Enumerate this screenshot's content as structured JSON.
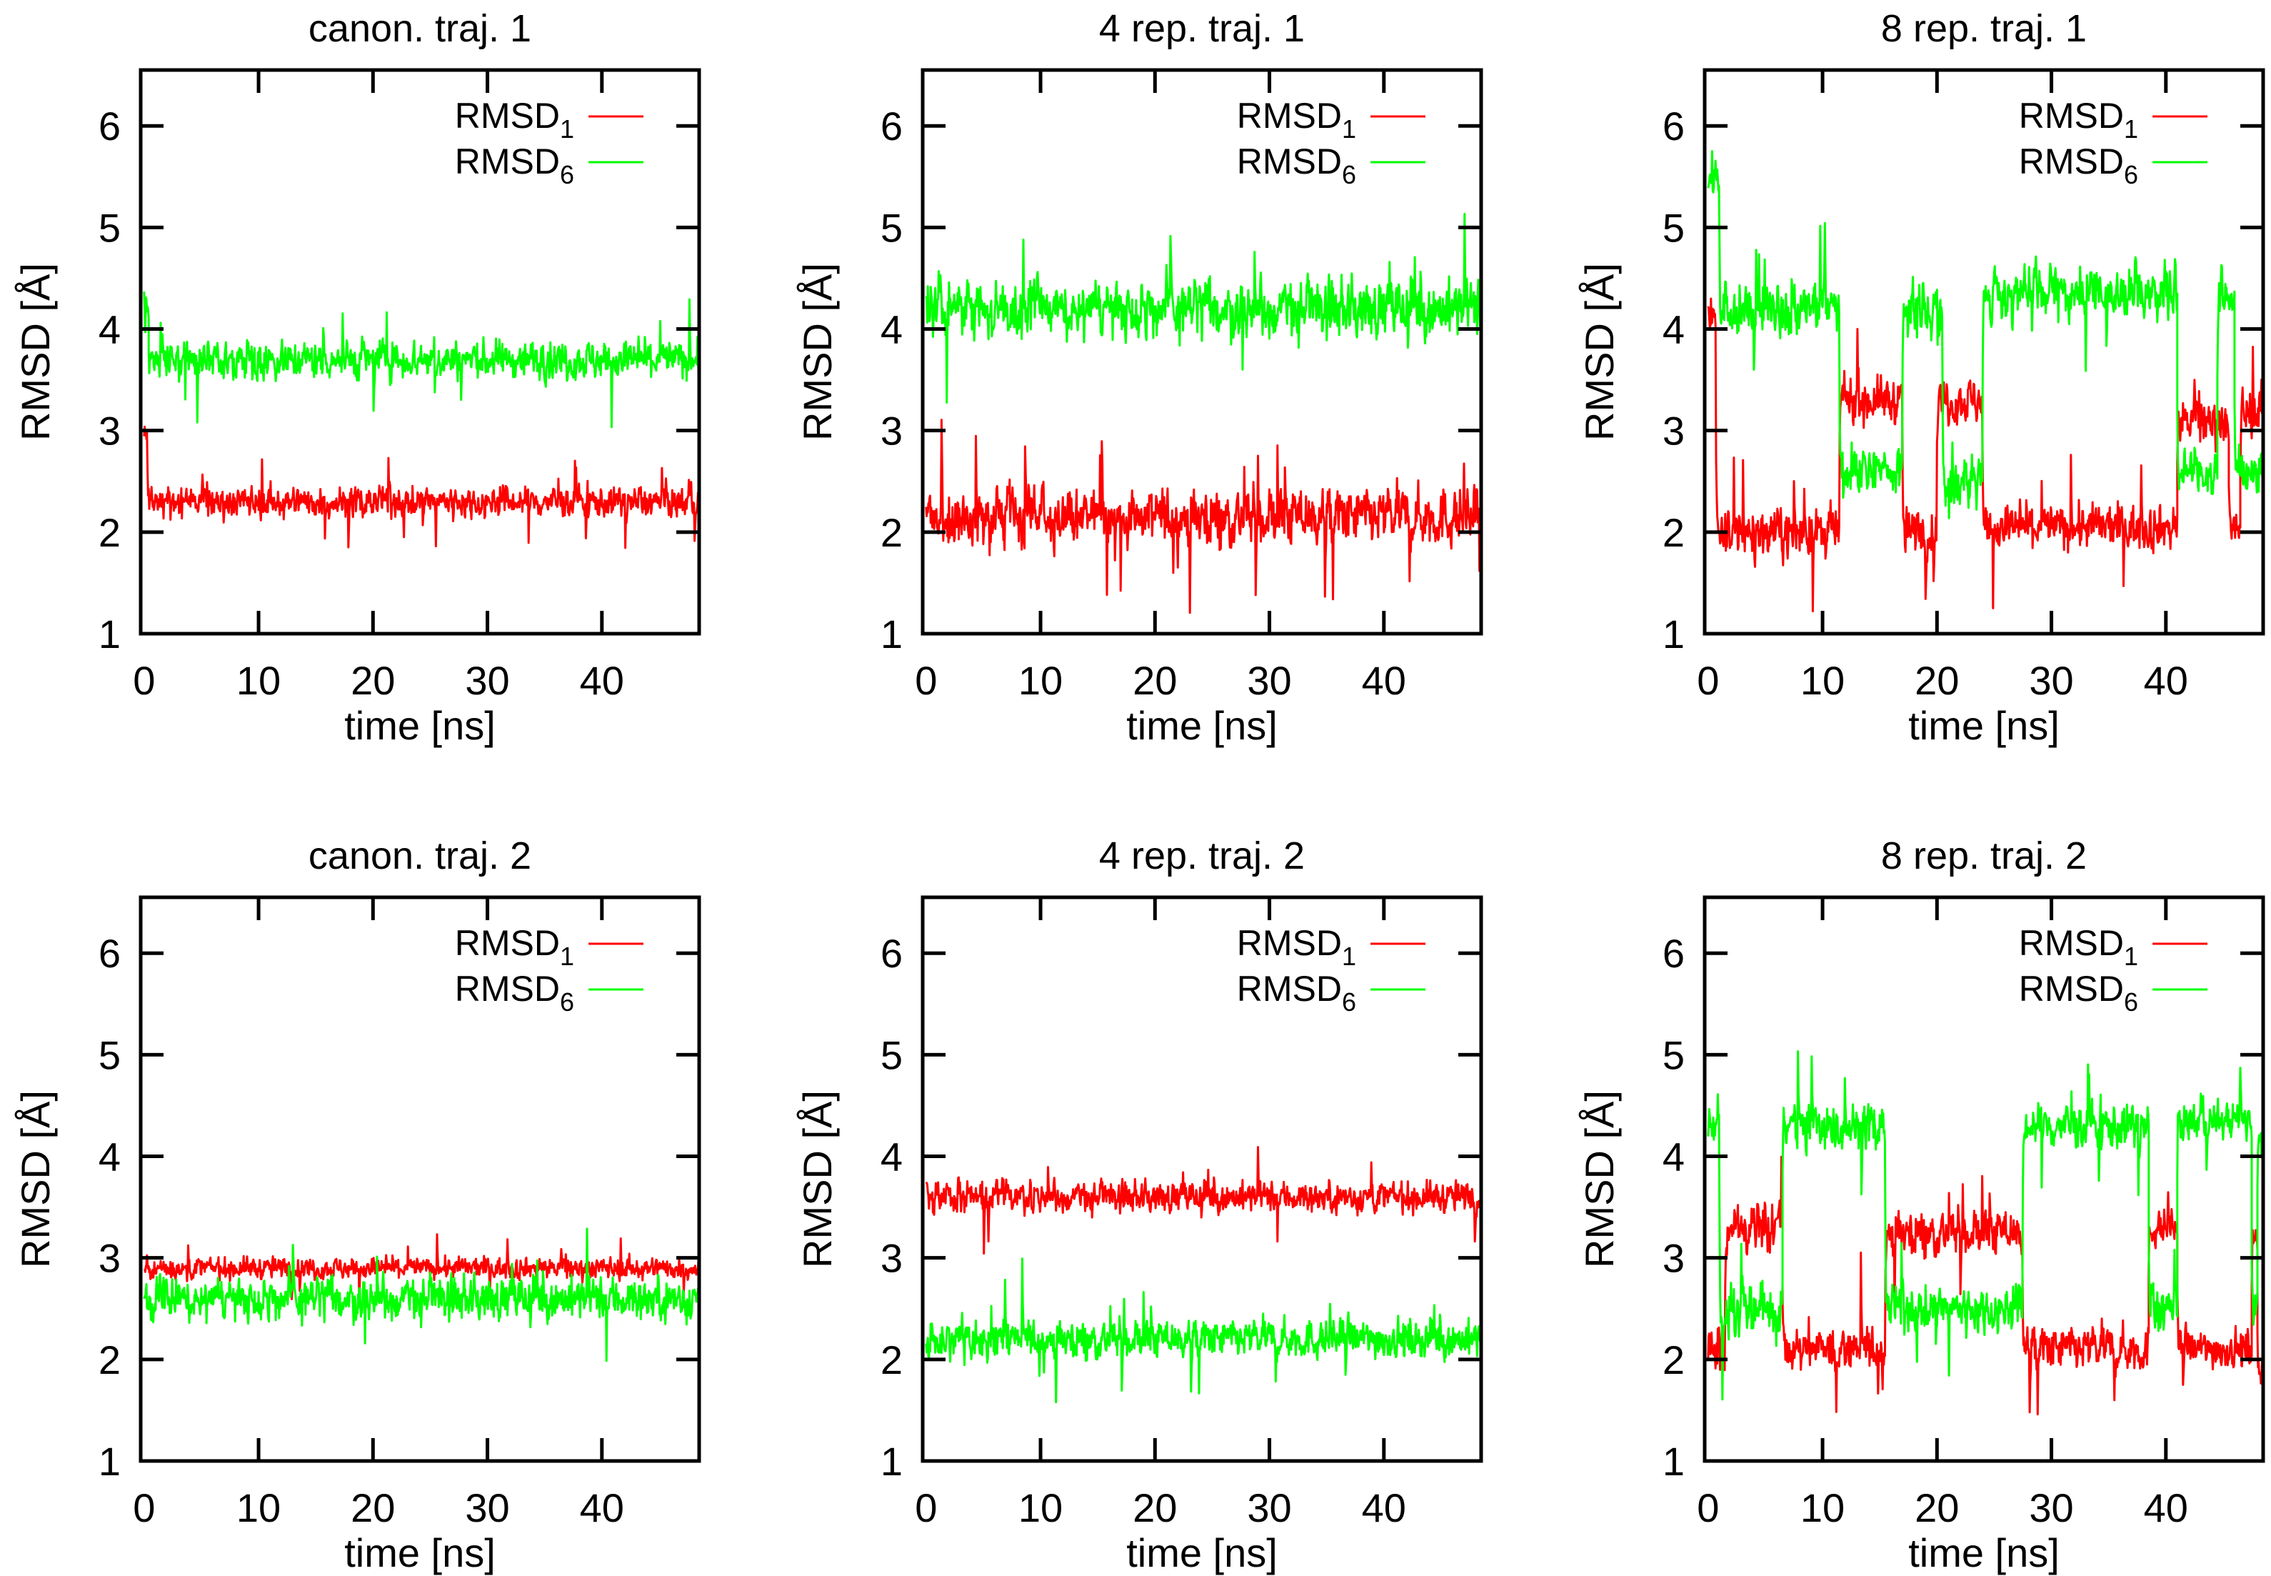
{
  "colors": {
    "rmsd1": "#ff0000",
    "rmsd6": "#00ff00",
    "axis": "#000000"
  },
  "chart_data": [
    {
      "type": "line",
      "title": "canon. traj. 1",
      "xlabel": "time [ns]",
      "ylabel": "RMSD [Å]",
      "xlim": [
        -0.3,
        48.5
      ],
      "ylim": [
        1,
        6.55
      ],
      "xticks": [
        "0",
        "10",
        "20",
        "30",
        "40"
      ],
      "yticks": [
        "1",
        "2",
        "3",
        "4",
        "5",
        "6"
      ],
      "legend": {
        "position": "top-right"
      },
      "series": [
        {
          "name": "RMSD",
          "sub": "1",
          "color_key": "rmsd1",
          "seed": 11,
          "segments": [
            [
              0,
              0.3,
              3.0,
              0.3
            ],
            [
              0.3,
              48.5,
              2.3,
              0.2
            ]
          ]
        },
        {
          "name": "RMSD",
          "sub": "6",
          "color_key": "rmsd6",
          "seed": 12,
          "segments": [
            [
              0,
              0.4,
              4.3,
              0.3
            ],
            [
              0.4,
              48.5,
              3.7,
              0.25
            ]
          ]
        }
      ]
    },
    {
      "type": "line",
      "title": "4 rep. traj. 1",
      "xlabel": "time [ns]",
      "ylabel": "RMSD [Å]",
      "xlim": [
        -0.3,
        48.5
      ],
      "ylim": [
        1,
        6.55
      ],
      "xticks": [
        "0",
        "10",
        "20",
        "30",
        "40"
      ],
      "yticks": [
        "1",
        "2",
        "3",
        "4",
        "5",
        "6"
      ],
      "legend": {
        "position": "top-right"
      },
      "series": [
        {
          "name": "RMSD",
          "sub": "1",
          "color_key": "rmsd1",
          "seed": 21,
          "segments": [
            [
              0,
              48.5,
              2.15,
              0.38
            ]
          ]
        },
        {
          "name": "RMSD",
          "sub": "6",
          "color_key": "rmsd6",
          "seed": 22,
          "segments": [
            [
              0,
              48.5,
              4.2,
              0.38
            ]
          ]
        }
      ]
    },
    {
      "type": "line",
      "title": "8 rep. traj. 1",
      "xlabel": "time [ns]",
      "ylabel": "RMSD [Å]",
      "xlim": [
        -0.3,
        48.5
      ],
      "ylim": [
        1,
        6.55
      ],
      "xticks": [
        "0",
        "10",
        "20",
        "30",
        "40"
      ],
      "yticks": [
        "1",
        "2",
        "3",
        "4",
        "5",
        "6"
      ],
      "legend": {
        "position": "top-right"
      },
      "series": [
        {
          "name": "RMSD",
          "sub": "1",
          "color_key": "rmsd1",
          "seed": 31,
          "segments": [
            [
              0,
              0.7,
              4.2,
              0.25
            ],
            [
              0.7,
              11.5,
              2.0,
              0.3
            ],
            [
              11.5,
              17,
              3.3,
              0.3
            ],
            [
              17,
              20,
              2.0,
              0.3
            ],
            [
              20,
              24,
              3.3,
              0.3
            ],
            [
              24,
              41,
              2.05,
              0.3
            ],
            [
              41,
              45.5,
              3.1,
              0.3
            ],
            [
              45.5,
              46.5,
              2.0,
              0.3
            ],
            [
              46.5,
              48.5,
              3.2,
              0.3
            ]
          ]
        },
        {
          "name": "RMSD",
          "sub": "6",
          "color_key": "rmsd6",
          "seed": 32,
          "segments": [
            [
              0,
              1,
              5.5,
              0.3
            ],
            [
              1,
              11.5,
              4.2,
              0.35
            ],
            [
              11.5,
              17,
              2.6,
              0.3
            ],
            [
              17,
              20.5,
              4.2,
              0.35
            ],
            [
              20.5,
              24,
              2.5,
              0.3
            ],
            [
              24,
              41,
              4.35,
              0.35
            ],
            [
              41,
              44.5,
              2.6,
              0.3
            ],
            [
              44.5,
              46,
              4.3,
              0.3
            ],
            [
              46,
              48.5,
              2.6,
              0.3
            ]
          ]
        }
      ]
    },
    {
      "type": "line",
      "title": "canon. traj. 2",
      "xlabel": "time [ns]",
      "ylabel": "RMSD [Å]",
      "xlim": [
        -0.3,
        48.5
      ],
      "ylim": [
        1,
        6.55
      ],
      "xticks": [
        "0",
        "10",
        "20",
        "30",
        "40"
      ],
      "yticks": [
        "1",
        "2",
        "3",
        "4",
        "5",
        "6"
      ],
      "legend": {
        "position": "top-right"
      },
      "series": [
        {
          "name": "RMSD",
          "sub": "1",
          "color_key": "rmsd1",
          "seed": 41,
          "segments": [
            [
              0,
              48.5,
              2.9,
              0.14
            ]
          ]
        },
        {
          "name": "RMSD",
          "sub": "6",
          "color_key": "rmsd6",
          "seed": 42,
          "segments": [
            [
              0,
              48.5,
              2.6,
              0.28
            ]
          ]
        }
      ]
    },
    {
      "type": "line",
      "title": "4 rep. traj. 2",
      "xlabel": "time [ns]",
      "ylabel": "RMSD [Å]",
      "xlim": [
        -0.3,
        48.5
      ],
      "ylim": [
        1,
        6.55
      ],
      "xticks": [
        "0",
        "10",
        "20",
        "30",
        "40"
      ],
      "yticks": [
        "1",
        "2",
        "3",
        "4",
        "5",
        "6"
      ],
      "legend": {
        "position": "top-right"
      },
      "series": [
        {
          "name": "RMSD",
          "sub": "1",
          "color_key": "rmsd1",
          "seed": 51,
          "segments": [
            [
              0,
              48.5,
              3.6,
              0.2
            ]
          ]
        },
        {
          "name": "RMSD",
          "sub": "6",
          "color_key": "rmsd6",
          "seed": 52,
          "segments": [
            [
              0,
              48.5,
              2.2,
              0.25
            ]
          ]
        }
      ]
    },
    {
      "type": "line",
      "title": "8 rep. traj. 2",
      "xlabel": "time [ns]",
      "ylabel": "RMSD [Å]",
      "xlim": [
        -0.3,
        48.5
      ],
      "ylim": [
        1,
        6.55
      ],
      "xticks": [
        "0",
        "10",
        "20",
        "30",
        "40"
      ],
      "yticks": [
        "1",
        "2",
        "3",
        "4",
        "5",
        "6"
      ],
      "legend": {
        "position": "top-right"
      },
      "series": [
        {
          "name": "RMSD",
          "sub": "1",
          "color_key": "rmsd1",
          "seed": 61,
          "segments": [
            [
              0,
              1.5,
              2.1,
              0.3
            ],
            [
              1.5,
              6.5,
              3.3,
              0.3
            ],
            [
              6.5,
              15.5,
              2.1,
              0.3
            ],
            [
              15.5,
              27.5,
              3.25,
              0.3
            ],
            [
              27.5,
              38.5,
              2.1,
              0.3
            ],
            [
              38.5,
              41,
              3.3,
              0.25
            ],
            [
              41,
              47.5,
              2.1,
              0.25
            ],
            [
              47.5,
              48,
              3.2,
              0.2
            ],
            [
              48,
              48.5,
              1.9,
              0.2
            ]
          ]
        },
        {
          "name": "RMSD",
          "sub": "6",
          "color_key": "rmsd6",
          "seed": 62,
          "segments": [
            [
              0,
              1,
              4.3,
              0.3
            ],
            [
              1,
              6.5,
              2.5,
              0.35
            ],
            [
              6.5,
              15.5,
              4.3,
              0.3
            ],
            [
              15.5,
              27.5,
              2.5,
              0.3
            ],
            [
              27.5,
              38.5,
              4.3,
              0.3
            ],
            [
              38.5,
              41,
              2.5,
              0.35
            ],
            [
              41,
              47.5,
              4.35,
              0.25
            ],
            [
              47.5,
              48,
              2.5,
              0.3
            ],
            [
              48,
              48.5,
              4.2,
              0.3
            ]
          ]
        }
      ]
    }
  ]
}
